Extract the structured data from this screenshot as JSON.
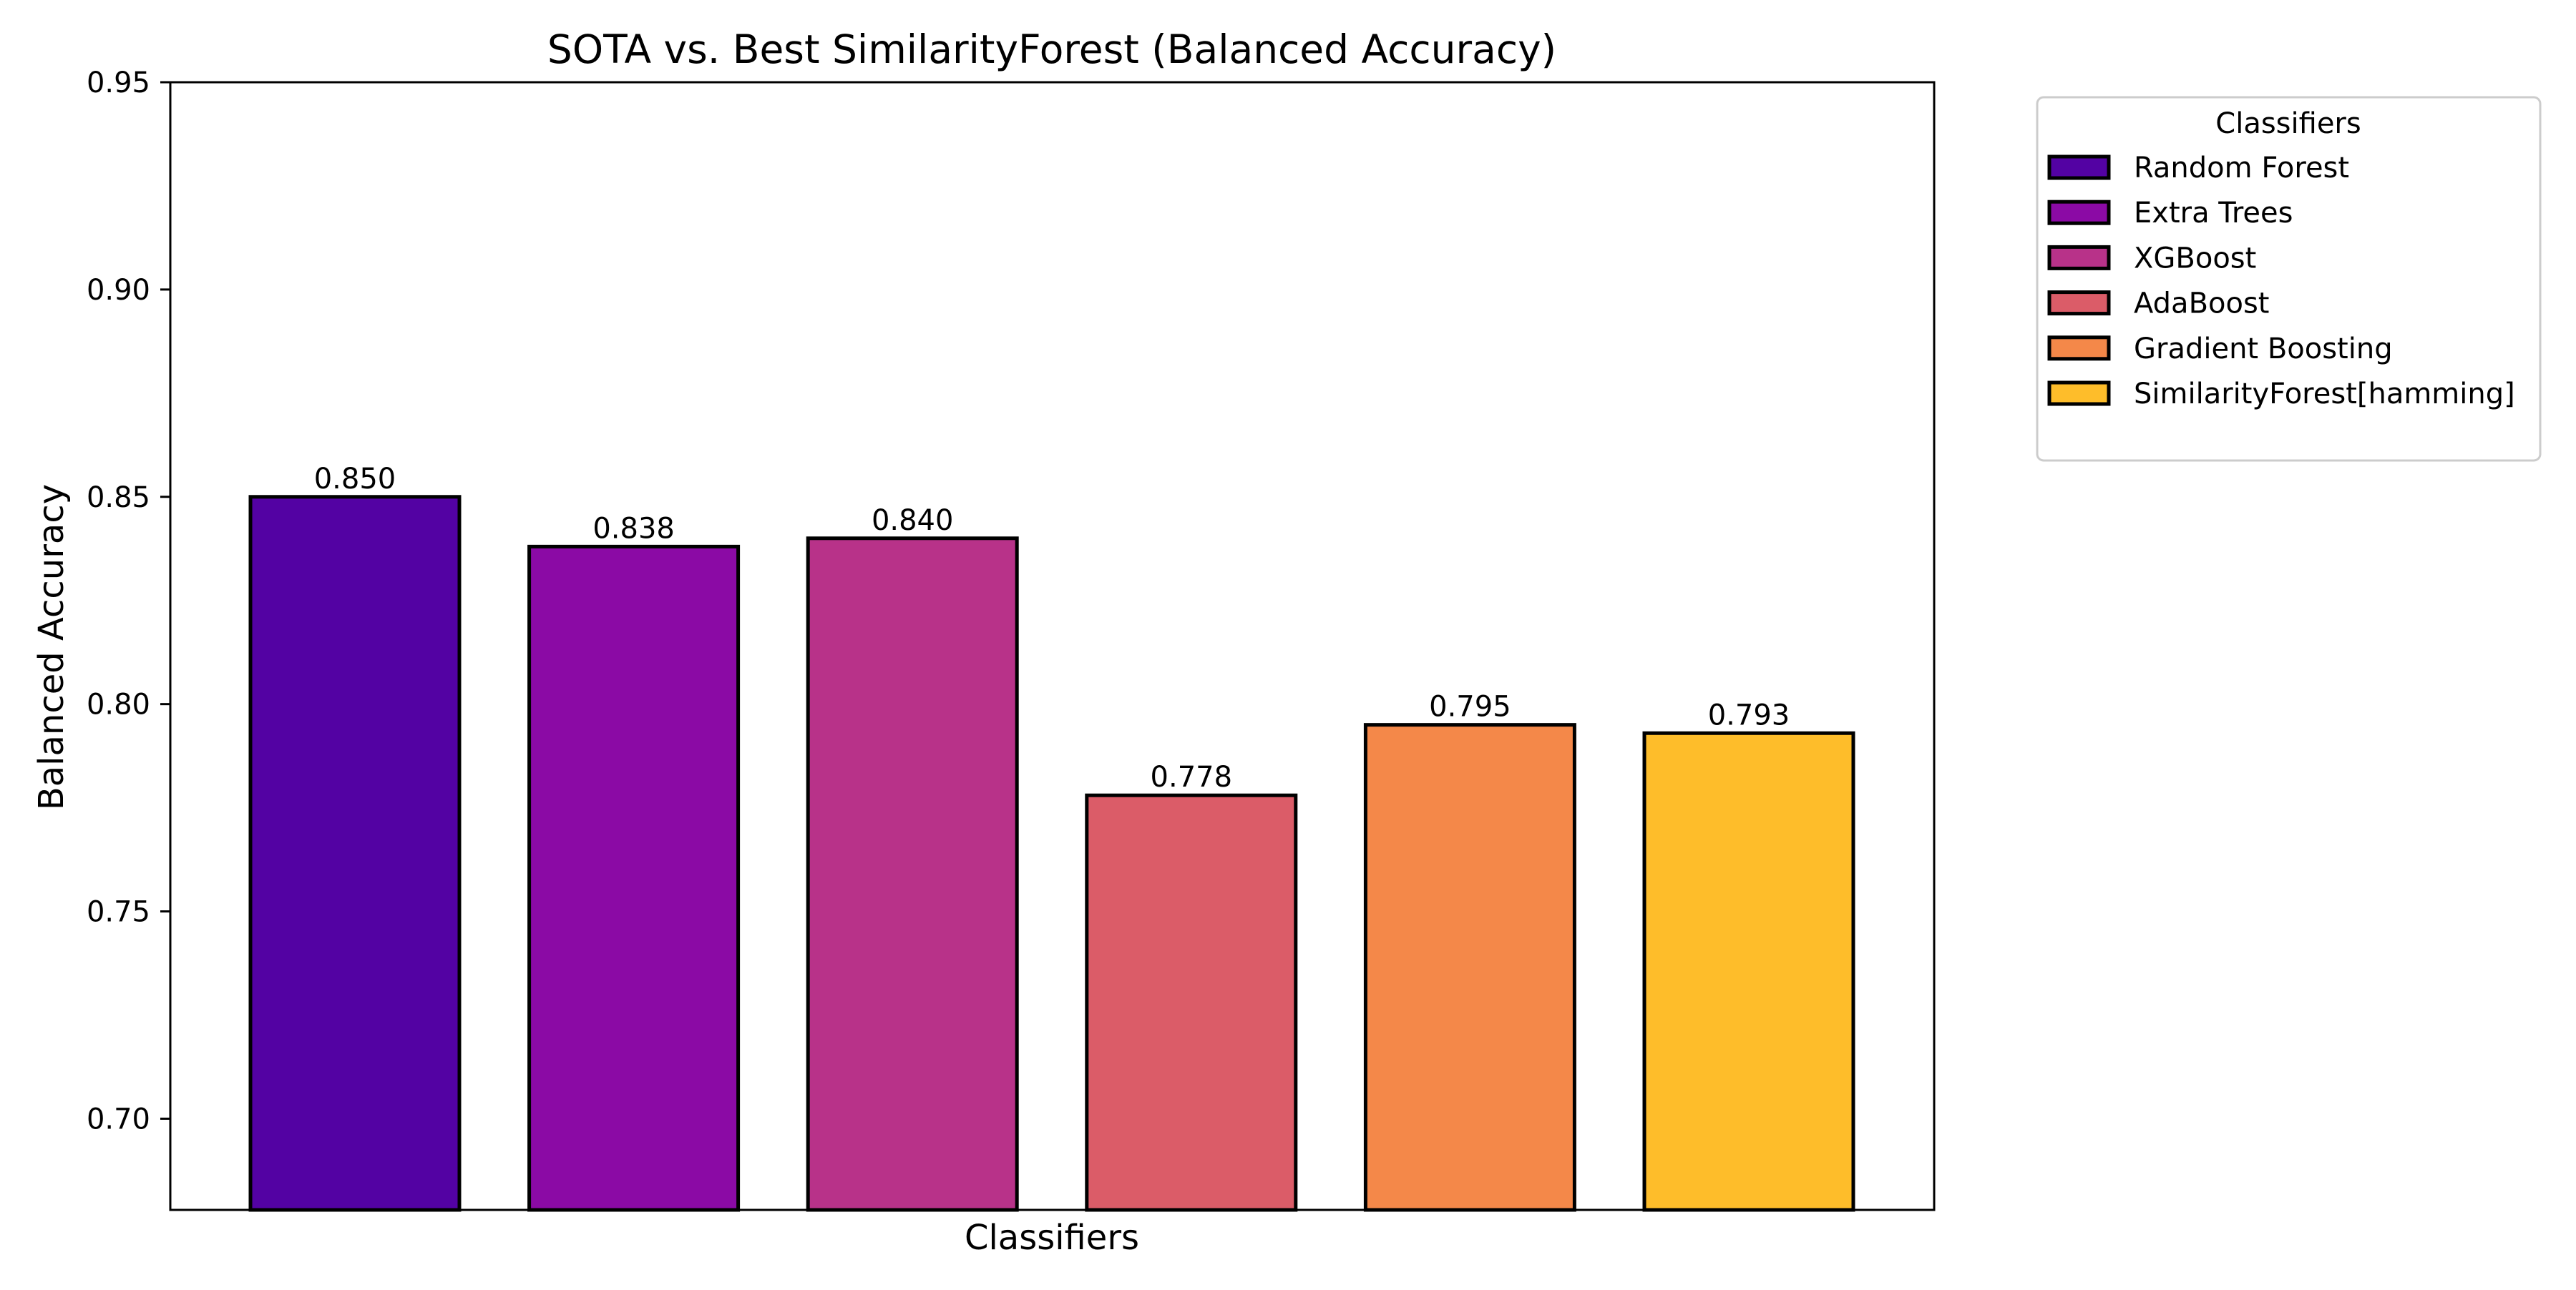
{
  "chart_data": {
    "type": "bar",
    "title": "SOTA vs. Best SimilarityForest (Balanced Accuracy)",
    "xlabel": "Classifiers",
    "ylabel": "Balanced Accuracy",
    "ylim": [
      0.678,
      0.95
    ],
    "yticks": [
      0.7,
      0.75,
      0.8,
      0.85,
      0.9,
      0.95
    ],
    "ytick_labels": [
      "0.70",
      "0.75",
      "0.80",
      "0.85",
      "0.90",
      "0.95"
    ],
    "grid": false,
    "categories": [
      "Random Forest",
      "Extra Trees",
      "XGBoost",
      "AdaBoost",
      "Gradient Boosting",
      "SimilarityForest[hamming]"
    ],
    "values": [
      0.85,
      0.838,
      0.84,
      0.778,
      0.795,
      0.793
    ],
    "value_labels": [
      "0.850",
      "0.838",
      "0.840",
      "0.778",
      "0.795",
      "0.793"
    ],
    "colors": [
      "#5302a3",
      "#8b0aa5",
      "#b83289",
      "#db5c68",
      "#f48849",
      "#febd2a"
    ],
    "legend": {
      "title": "Classifiers",
      "placement": "outside-top-right"
    }
  }
}
